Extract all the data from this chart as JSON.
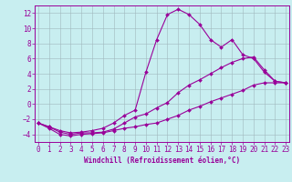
{
  "xlabel": "Windchill (Refroidissement éolien,°C)",
  "background_color": "#c8eef0",
  "grid_color": "#a0b8bc",
  "line_color": "#990099",
  "x_values": [
    0,
    1,
    2,
    3,
    4,
    5,
    6,
    7,
    8,
    9,
    10,
    11,
    12,
    13,
    14,
    15,
    16,
    17,
    18,
    19,
    20,
    21,
    22,
    23
  ],
  "line_top": [
    -2.5,
    -3.0,
    -3.5,
    -3.8,
    -3.7,
    -3.5,
    -3.2,
    -2.5,
    -1.5,
    -0.8,
    4.2,
    8.5,
    11.8,
    12.5,
    11.8,
    10.5,
    8.5,
    7.5,
    8.5,
    6.5,
    6.0,
    4.2,
    3.0,
    2.8
  ],
  "line_mid": [
    -2.5,
    -3.0,
    -3.7,
    -4.0,
    -3.8,
    -3.8,
    -3.7,
    -3.3,
    -2.5,
    -1.7,
    -1.3,
    -0.5,
    0.2,
    1.5,
    2.5,
    3.2,
    4.0,
    4.8,
    5.5,
    6.0,
    6.2,
    4.5,
    3.0,
    2.8
  ],
  "line_bot": [
    -2.5,
    -3.2,
    -4.0,
    -4.2,
    -4.0,
    -3.9,
    -3.8,
    -3.5,
    -3.2,
    -3.0,
    -2.7,
    -2.5,
    -2.0,
    -1.5,
    -0.8,
    -0.3,
    0.3,
    0.8,
    1.3,
    1.8,
    2.5,
    2.8,
    2.8,
    2.8
  ],
  "ylim": [
    -5,
    13
  ],
  "xlim": [
    -0.3,
    23.3
  ],
  "yticks": [
    -4,
    -2,
    0,
    2,
    4,
    6,
    8,
    10,
    12
  ],
  "xticks": [
    0,
    1,
    2,
    3,
    4,
    5,
    6,
    7,
    8,
    9,
    10,
    11,
    12,
    13,
    14,
    15,
    16,
    17,
    18,
    19,
    20,
    21,
    22,
    23
  ],
  "xlabel_fontsize": 5.5,
  "tick_fontsize": 5.5,
  "marker_size": 2.0,
  "line_width": 0.8
}
